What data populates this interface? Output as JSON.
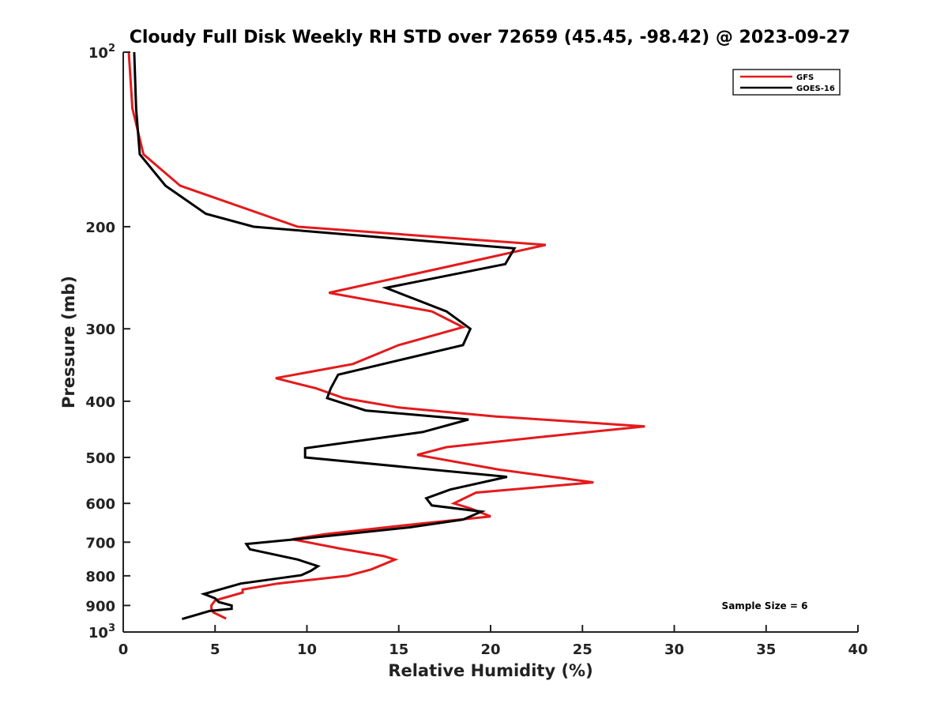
{
  "chart_data": {
    "type": "line",
    "title": "Cloudy Full Disk Weekly RH STD over 72659 (45.45, -98.42) @ 2023-09-27",
    "xlabel": "Relative Humidity (%)",
    "ylabel": "Pressure (mb)",
    "xlim": [
      0,
      40
    ],
    "ylim": [
      100,
      1000
    ],
    "y_scale": "log",
    "y_reversed": true,
    "x_ticks": [
      "0",
      "5",
      "10",
      "15",
      "20",
      "25",
      "30",
      "35",
      "40"
    ],
    "y_ticks": [
      {
        "value": 100,
        "label": "10",
        "sup": "2"
      },
      {
        "value": 200,
        "label": "200",
        "sup": ""
      },
      {
        "value": 300,
        "label": "300",
        "sup": ""
      },
      {
        "value": 400,
        "label": "400",
        "sup": ""
      },
      {
        "value": 500,
        "label": "500",
        "sup": ""
      },
      {
        "value": 600,
        "label": "600",
        "sup": ""
      },
      {
        "value": 700,
        "label": "700",
        "sup": ""
      },
      {
        "value": 800,
        "label": "800",
        "sup": ""
      },
      {
        "value": 900,
        "label": "900",
        "sup": ""
      },
      {
        "value": 1000,
        "label": "10",
        "sup": "3"
      }
    ],
    "grid": false,
    "legend_position": "top-right",
    "annotation": "Sample Size = 6",
    "series": [
      {
        "name": "GFS",
        "color": "#e41a1c",
        "points": [
          [
            0.3,
            100
          ],
          [
            0.5,
            125
          ],
          [
            1.1,
            150
          ],
          [
            3.1,
            170
          ],
          [
            9.5,
            200
          ],
          [
            23.0,
            215
          ],
          [
            17.5,
            235
          ],
          [
            11.2,
            260
          ],
          [
            16.8,
            280
          ],
          [
            18.5,
            298
          ],
          [
            15.0,
            320
          ],
          [
            12.5,
            345
          ],
          [
            8.3,
            365
          ],
          [
            10.5,
            380
          ],
          [
            12.0,
            395
          ],
          [
            15.0,
            410
          ],
          [
            20.3,
            425
          ],
          [
            28.4,
            442
          ],
          [
            22.5,
            462
          ],
          [
            17.6,
            480
          ],
          [
            16.0,
            495
          ],
          [
            20.5,
            525
          ],
          [
            25.6,
            552
          ],
          [
            19.2,
            575
          ],
          [
            18.0,
            600
          ],
          [
            18.9,
            612
          ],
          [
            20.0,
            632
          ],
          [
            16.2,
            650
          ],
          [
            11.0,
            678
          ],
          [
            9.2,
            692
          ],
          [
            11.8,
            718
          ],
          [
            14.2,
            740
          ],
          [
            14.8,
            750
          ],
          [
            13.5,
            780
          ],
          [
            12.2,
            800
          ],
          [
            8.4,
            825
          ],
          [
            6.5,
            845
          ],
          [
            6.5,
            855
          ],
          [
            5.0,
            882
          ],
          [
            4.8,
            900
          ],
          [
            4.8,
            912
          ],
          [
            4.9,
            925
          ],
          [
            5.6,
            948
          ]
        ]
      },
      {
        "name": "GOES-16",
        "color": "#000000",
        "points": [
          [
            0.6,
            100
          ],
          [
            0.7,
            125
          ],
          [
            0.9,
            150
          ],
          [
            2.3,
            170
          ],
          [
            4.5,
            190
          ],
          [
            7.1,
            200
          ],
          [
            21.3,
            218
          ],
          [
            20.8,
            232
          ],
          [
            14.3,
            255
          ],
          [
            17.6,
            280
          ],
          [
            18.9,
            300
          ],
          [
            18.5,
            320
          ],
          [
            15.0,
            340
          ],
          [
            11.7,
            360
          ],
          [
            11.3,
            380
          ],
          [
            11.1,
            395
          ],
          [
            13.2,
            415
          ],
          [
            18.8,
            430
          ],
          [
            16.3,
            452
          ],
          [
            9.9,
            482
          ],
          [
            9.9,
            500
          ],
          [
            20.9,
            540
          ],
          [
            17.8,
            568
          ],
          [
            16.5,
            588
          ],
          [
            16.8,
            605
          ],
          [
            19.5,
            620
          ],
          [
            18.5,
            640
          ],
          [
            15.6,
            660
          ],
          [
            9.8,
            690
          ],
          [
            6.7,
            705
          ],
          [
            6.9,
            720
          ],
          [
            9.5,
            750
          ],
          [
            10.6,
            770
          ],
          [
            10.2,
            785
          ],
          [
            9.7,
            798
          ],
          [
            6.4,
            825
          ],
          [
            4.4,
            860
          ],
          [
            5.0,
            875
          ],
          [
            5.2,
            888
          ],
          [
            5.9,
            900
          ],
          [
            5.9,
            912
          ],
          [
            4.7,
            920
          ],
          [
            3.2,
            950
          ]
        ]
      }
    ]
  }
}
